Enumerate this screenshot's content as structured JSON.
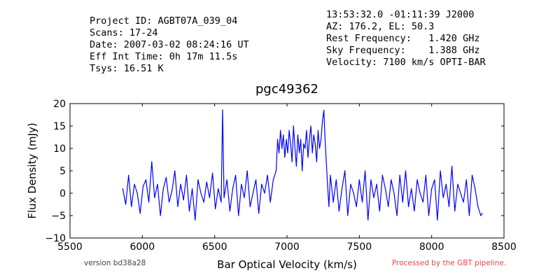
{
  "header": {
    "left": [
      "Project ID: AGBT07A_039_04",
      "Scans: 17-24",
      "Date: 2007-03-02 08:24:16 UT",
      "Eff Int Time: 0h 17m 11.5s",
      "Tsys: 16.51 K"
    ],
    "right": [
      "13:53:32.0 -01:11:39 J2000",
      "AZ: 176.2, EL: 50.3",
      "Rest Frequency:   1.420 GHz",
      "Sky Frequency:    1.388 GHz",
      "Velocity: 7100 km/s OPTI-BAR"
    ]
  },
  "footer": {
    "version": "version bd38a28",
    "processed": "Processed by the GBT pipeline."
  },
  "colors": {
    "line": "#0000ff",
    "processed_text": "#e8474a"
  },
  "chart_data": {
    "type": "line",
    "title": "pgc49362",
    "xlabel": "Bar Optical Velocity (km/s)",
    "ylabel": "Flux Density (mJy)",
    "xlim": [
      5500,
      8500
    ],
    "ylim": [
      -10,
      20
    ],
    "xticks": [
      5500,
      6000,
      6500,
      7000,
      7500,
      8000,
      8500
    ],
    "yticks": [
      -10,
      -5,
      0,
      5,
      10,
      15,
      20
    ],
    "grid": false,
    "series": [
      {
        "x": [
          5865,
          5885,
          5905,
          5925,
          5945,
          5965,
          5985,
          6005,
          6025,
          6045,
          6065,
          6085,
          6105,
          6125,
          6145,
          6165,
          6185,
          6205,
          6225,
          6245,
          6265,
          6285,
          6305,
          6325,
          6345,
          6365,
          6385,
          6405,
          6425,
          6445,
          6465,
          6485,
          6505,
          6525,
          6545,
          6555,
          6565,
          6585,
          6605,
          6625,
          6645,
          6665,
          6685,
          6705,
          6725,
          6745,
          6765,
          6785,
          6805,
          6825,
          6845,
          6865,
          6885,
          6905,
          6925,
          6935,
          6945,
          6955,
          6965,
          6975,
          6985,
          6995,
          7005,
          7015,
          7025,
          7035,
          7045,
          7055,
          7065,
          7075,
          7085,
          7095,
          7105,
          7115,
          7125,
          7135,
          7145,
          7155,
          7165,
          7175,
          7185,
          7195,
          7205,
          7215,
          7225,
          7235,
          7245,
          7255,
          7262,
          7270,
          7280,
          7290,
          7300,
          7320,
          7340,
          7360,
          7380,
          7400,
          7420,
          7440,
          7460,
          7480,
          7500,
          7520,
          7540,
          7560,
          7580,
          7600,
          7620,
          7640,
          7660,
          7680,
          7700,
          7720,
          7740,
          7760,
          7780,
          7800,
          7820,
          7840,
          7860,
          7880,
          7900,
          7920,
          7940,
          7960,
          7980,
          8000,
          8020,
          8040,
          8060,
          8080,
          8100,
          8120,
          8140,
          8160,
          8180,
          8200,
          8220,
          8240,
          8260,
          8280,
          8300,
          8320,
          8340,
          8350
        ],
        "y": [
          1,
          -2.5,
          4,
          -3,
          2,
          0,
          -4.5,
          1.5,
          3,
          -2,
          7,
          -1,
          2,
          -5,
          1,
          3.5,
          -2,
          0.5,
          5,
          -3,
          2,
          -1.5,
          4,
          -4,
          1,
          -6,
          3,
          0,
          -2,
          2.5,
          -1,
          4.5,
          -3.5,
          1,
          -2,
          18.6,
          -1,
          3,
          -4,
          1,
          4,
          -5,
          2,
          -1,
          5,
          -3,
          0,
          3,
          -4.5,
          2,
          0,
          4,
          -2,
          3,
          5,
          12,
          9,
          14,
          10,
          13,
          8,
          12,
          9,
          14,
          11,
          7,
          15,
          10,
          6,
          13,
          9,
          12,
          5,
          11,
          10,
          14,
          8,
          12,
          15,
          9,
          13,
          11,
          7,
          14,
          10,
          12,
          16,
          18.5,
          13,
          8,
          2,
          -3,
          4,
          -2,
          3,
          -4,
          1,
          5,
          -5,
          2,
          0,
          -3,
          3,
          -2,
          5,
          -6,
          3,
          -1,
          2,
          -4,
          4,
          1,
          -3,
          3,
          0,
          -5,
          4,
          -2,
          5,
          -3,
          1,
          -4,
          3,
          0,
          -2,
          4,
          -5,
          1,
          3,
          -6,
          5,
          -1,
          2,
          -3,
          6,
          -4,
          2,
          0,
          -2,
          3,
          -5,
          4,
          1,
          -3,
          -5,
          -4.5
        ]
      }
    ]
  }
}
